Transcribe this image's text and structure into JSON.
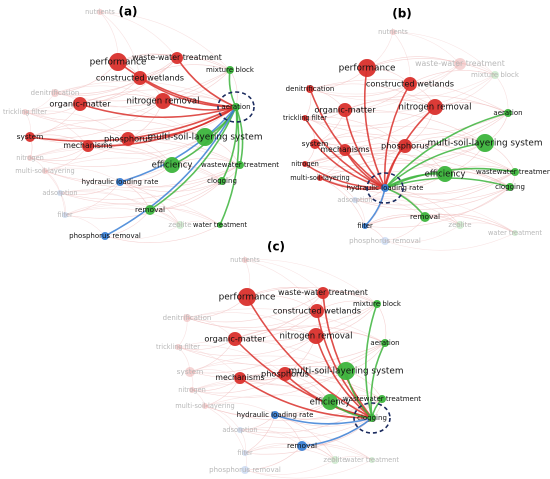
{
  "panels": [
    {
      "label": "(a)",
      "nodes": [
        {
          "label": "nutrients",
          "color": "#e8a0a0",
          "faded": true
        },
        {
          "label": "performance",
          "color": "#d9302c"
        },
        {
          "label": "waste-water treatment",
          "color": "#d9302c"
        },
        {
          "label": "constructed wetlands",
          "color": "#d9302c"
        },
        {
          "label": "mixture block",
          "color": "#3cb43c"
        },
        {
          "label": "denitrification",
          "color": "#e8a0a0",
          "faded": true
        },
        {
          "label": "organic-matter",
          "color": "#d9302c"
        },
        {
          "label": "nitrogen removal",
          "color": "#d9302c"
        },
        {
          "label": "aeration",
          "color": "#3cb43c",
          "highlighted": true
        },
        {
          "label": "trickling filter",
          "color": "#e8a0a0",
          "faded": true
        },
        {
          "label": "system",
          "color": "#d9302c"
        },
        {
          "label": "phosphorus",
          "color": "#d9302c"
        },
        {
          "label": "multi-soil-layering system",
          "color": "#3cb43c"
        },
        {
          "label": "mechanisms",
          "color": "#d9302c"
        },
        {
          "label": "nitrogen",
          "color": "#e8a0a0",
          "faded": true
        },
        {
          "label": "efficiency",
          "color": "#3cb43c"
        },
        {
          "label": "wastewater treatment",
          "color": "#3cb43c"
        },
        {
          "label": "multi-soil-layering",
          "color": "#e8a0a0",
          "faded": true
        },
        {
          "label": "clogging",
          "color": "#3cb43c"
        },
        {
          "label": "hydraulic loading rate",
          "color": "#3a7fd5"
        },
        {
          "label": "adsorption",
          "color": "#9fbde8",
          "faded": true
        },
        {
          "label": "filter",
          "color": "#9fbde8",
          "faded": true
        },
        {
          "label": "removal",
          "color": "#3cb43c"
        },
        {
          "label": "zeolite",
          "color": "#9fd89f",
          "faded": true
        },
        {
          "label": "water treatment",
          "color": "#3cb43c"
        },
        {
          "label": "phosphorus removal",
          "color": "#3a7fd5"
        }
      ]
    },
    {
      "label": "(b)",
      "nodes": [
        {
          "label": "nutrients",
          "color": "#e8a0a0",
          "faded": true
        },
        {
          "label": "performance",
          "color": "#d9302c"
        },
        {
          "label": "waste-water treatment",
          "color": "#e8a0a0",
          "faded": true
        },
        {
          "label": "constructed wetlands",
          "color": "#d9302c"
        },
        {
          "label": "mixture block",
          "color": "#9fd89f",
          "faded": true
        },
        {
          "label": "denitrification",
          "color": "#d9302c"
        },
        {
          "label": "organic-matter",
          "color": "#d9302c"
        },
        {
          "label": "nitrogen removal",
          "color": "#d9302c"
        },
        {
          "label": "aeration",
          "color": "#3cb43c"
        },
        {
          "label": "trickling filter",
          "color": "#d9302c"
        },
        {
          "label": "system",
          "color": "#d9302c"
        },
        {
          "label": "phosphorus",
          "color": "#d9302c"
        },
        {
          "label": "multi-soil-layering system",
          "color": "#3cb43c"
        },
        {
          "label": "mechanisms",
          "color": "#d9302c"
        },
        {
          "label": "nitrogen",
          "color": "#d9302c"
        },
        {
          "label": "efficiency",
          "color": "#3cb43c"
        },
        {
          "label": "wastewater treatment",
          "color": "#3cb43c"
        },
        {
          "label": "multi-soil-layering",
          "color": "#d9302c"
        },
        {
          "label": "clogging",
          "color": "#3cb43c"
        },
        {
          "label": "hydraulic loading rate",
          "color": "#3a7fd5",
          "highlighted": true
        },
        {
          "label": "adsorption",
          "color": "#9fbde8",
          "faded": true
        },
        {
          "label": "filter",
          "color": "#3a7fd5"
        },
        {
          "label": "removal",
          "color": "#3cb43c"
        },
        {
          "label": "zeolite",
          "color": "#9fd89f",
          "faded": true
        },
        {
          "label": "water treatment",
          "color": "#9fd89f",
          "faded": true
        },
        {
          "label": "phosphorus removal",
          "color": "#9fbde8",
          "faded": true
        }
      ]
    },
    {
      "label": "(c)",
      "nodes": [
        {
          "label": "nutrients",
          "color": "#e8a0a0",
          "faded": true
        },
        {
          "label": "performance",
          "color": "#d9302c"
        },
        {
          "label": "waste-water treatment",
          "color": "#d9302c"
        },
        {
          "label": "constructed wetlands",
          "color": "#d9302c"
        },
        {
          "label": "mixture block",
          "color": "#3cb43c"
        },
        {
          "label": "denitrification",
          "color": "#e8a0a0",
          "faded": true
        },
        {
          "label": "organic-matter",
          "color": "#d9302c"
        },
        {
          "label": "nitrogen removal",
          "color": "#d9302c"
        },
        {
          "label": "aeration",
          "color": "#3cb43c"
        },
        {
          "label": "trickling filter",
          "color": "#e8a0a0",
          "faded": true
        },
        {
          "label": "system",
          "color": "#e8a0a0",
          "faded": true
        },
        {
          "label": "phosphorus",
          "color": "#d9302c"
        },
        {
          "label": "multi-soil-layering system",
          "color": "#3cb43c"
        },
        {
          "label": "mechanisms",
          "color": "#d9302c"
        },
        {
          "label": "nitrogen",
          "color": "#e8a0a0",
          "faded": true
        },
        {
          "label": "efficiency",
          "color": "#3cb43c"
        },
        {
          "label": "wastewater treatment",
          "color": "#3cb43c"
        },
        {
          "label": "multi-soil-layering",
          "color": "#e8a0a0",
          "faded": true
        },
        {
          "label": "clogging",
          "color": "#3cb43c",
          "highlighted": true
        },
        {
          "label": "hydraulic loading rate",
          "color": "#3a7fd5"
        },
        {
          "label": "adsorption",
          "color": "#9fbde8",
          "faded": true
        },
        {
          "label": "filter",
          "color": "#9fbde8",
          "faded": true
        },
        {
          "label": "removal",
          "color": "#3a7fd5"
        },
        {
          "label": "zeolite",
          "color": "#9fd89f",
          "faded": true
        },
        {
          "label": "water treatment",
          "color": "#9fd89f",
          "faded": true
        },
        {
          "label": "phosphorus removal",
          "color": "#9fbde8",
          "faded": true
        }
      ]
    }
  ]
}
